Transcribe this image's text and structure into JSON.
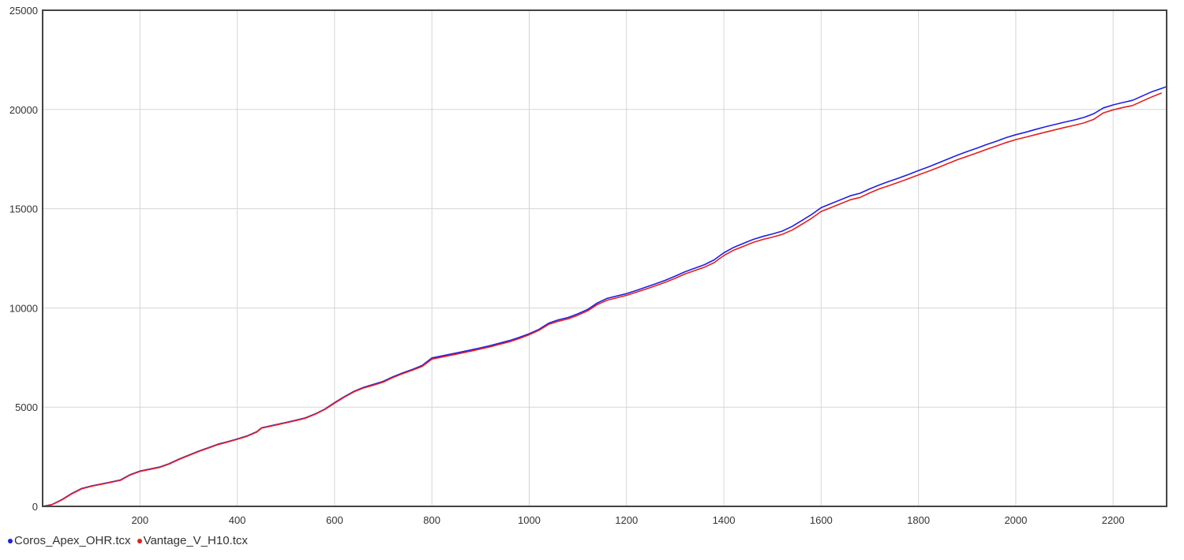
{
  "chart_data": {
    "type": "line",
    "xlim": [
      0,
      2310
    ],
    "ylim": [
      0,
      25000
    ],
    "x_ticks": [
      200,
      400,
      600,
      800,
      1000,
      1200,
      1400,
      1600,
      1800,
      2000,
      2200
    ],
    "y_ticks": [
      0,
      5000,
      10000,
      15000,
      20000,
      25000
    ],
    "grid": true,
    "legend_position": "bottom-left",
    "series": [
      {
        "name": "Coros_Apex_OHR.tcx",
        "color": "#1f1fe6",
        "points": [
          [
            0,
            0
          ],
          [
            20,
            100
          ],
          [
            40,
            350
          ],
          [
            60,
            650
          ],
          [
            80,
            900
          ],
          [
            100,
            1030
          ],
          [
            120,
            1130
          ],
          [
            140,
            1230
          ],
          [
            160,
            1330
          ],
          [
            180,
            1600
          ],
          [
            200,
            1780
          ],
          [
            220,
            1880
          ],
          [
            240,
            1980
          ],
          [
            260,
            2150
          ],
          [
            280,
            2380
          ],
          [
            300,
            2580
          ],
          [
            320,
            2780
          ],
          [
            340,
            2950
          ],
          [
            360,
            3130
          ],
          [
            380,
            3260
          ],
          [
            400,
            3400
          ],
          [
            420,
            3550
          ],
          [
            440,
            3760
          ],
          [
            450,
            3960
          ],
          [
            480,
            4120
          ],
          [
            500,
            4230
          ],
          [
            520,
            4340
          ],
          [
            540,
            4460
          ],
          [
            560,
            4660
          ],
          [
            580,
            4900
          ],
          [
            600,
            5230
          ],
          [
            620,
            5530
          ],
          [
            640,
            5800
          ],
          [
            660,
            6000
          ],
          [
            680,
            6150
          ],
          [
            700,
            6300
          ],
          [
            720,
            6530
          ],
          [
            740,
            6730
          ],
          [
            760,
            6900
          ],
          [
            780,
            7100
          ],
          [
            800,
            7480
          ],
          [
            820,
            7580
          ],
          [
            840,
            7680
          ],
          [
            860,
            7780
          ],
          [
            880,
            7880
          ],
          [
            900,
            7990
          ],
          [
            920,
            8100
          ],
          [
            940,
            8230
          ],
          [
            960,
            8360
          ],
          [
            980,
            8520
          ],
          [
            1000,
            8700
          ],
          [
            1020,
            8920
          ],
          [
            1040,
            9230
          ],
          [
            1060,
            9400
          ],
          [
            1080,
            9520
          ],
          [
            1100,
            9700
          ],
          [
            1120,
            9920
          ],
          [
            1140,
            10250
          ],
          [
            1160,
            10480
          ],
          [
            1180,
            10600
          ],
          [
            1200,
            10720
          ],
          [
            1220,
            10880
          ],
          [
            1240,
            11050
          ],
          [
            1260,
            11220
          ],
          [
            1280,
            11400
          ],
          [
            1300,
            11600
          ],
          [
            1320,
            11820
          ],
          [
            1340,
            12000
          ],
          [
            1360,
            12180
          ],
          [
            1380,
            12420
          ],
          [
            1400,
            12780
          ],
          [
            1420,
            13050
          ],
          [
            1440,
            13250
          ],
          [
            1460,
            13450
          ],
          [
            1480,
            13600
          ],
          [
            1500,
            13730
          ],
          [
            1520,
            13870
          ],
          [
            1540,
            14100
          ],
          [
            1560,
            14400
          ],
          [
            1580,
            14700
          ],
          [
            1600,
            15050
          ],
          [
            1620,
            15250
          ],
          [
            1640,
            15450
          ],
          [
            1660,
            15650
          ],
          [
            1680,
            15780
          ],
          [
            1700,
            16000
          ],
          [
            1720,
            16200
          ],
          [
            1740,
            16380
          ],
          [
            1760,
            16550
          ],
          [
            1780,
            16730
          ],
          [
            1800,
            16920
          ],
          [
            1820,
            17100
          ],
          [
            1840,
            17300
          ],
          [
            1860,
            17500
          ],
          [
            1880,
            17700
          ],
          [
            1900,
            17880
          ],
          [
            1920,
            18050
          ],
          [
            1940,
            18230
          ],
          [
            1960,
            18400
          ],
          [
            1980,
            18580
          ],
          [
            2000,
            18730
          ],
          [
            2020,
            18850
          ],
          [
            2040,
            18990
          ],
          [
            2060,
            19120
          ],
          [
            2080,
            19240
          ],
          [
            2100,
            19360
          ],
          [
            2120,
            19470
          ],
          [
            2140,
            19600
          ],
          [
            2160,
            19780
          ],
          [
            2180,
            20080
          ],
          [
            2200,
            20230
          ],
          [
            2220,
            20350
          ],
          [
            2240,
            20460
          ],
          [
            2260,
            20680
          ],
          [
            2280,
            20900
          ],
          [
            2310,
            21150
          ]
        ]
      },
      {
        "name": "Vantage_V_H10.tcx",
        "color": "#e61f1f",
        "points": [
          [
            0,
            0
          ],
          [
            20,
            90
          ],
          [
            40,
            330
          ],
          [
            60,
            630
          ],
          [
            80,
            880
          ],
          [
            100,
            1010
          ],
          [
            120,
            1110
          ],
          [
            140,
            1210
          ],
          [
            160,
            1310
          ],
          [
            180,
            1580
          ],
          [
            200,
            1760
          ],
          [
            220,
            1860
          ],
          [
            240,
            1960
          ],
          [
            260,
            2130
          ],
          [
            280,
            2360
          ],
          [
            300,
            2560
          ],
          [
            320,
            2760
          ],
          [
            340,
            2930
          ],
          [
            360,
            3110
          ],
          [
            380,
            3240
          ],
          [
            400,
            3380
          ],
          [
            420,
            3530
          ],
          [
            440,
            3740
          ],
          [
            450,
            3940
          ],
          [
            480,
            4100
          ],
          [
            500,
            4210
          ],
          [
            520,
            4320
          ],
          [
            540,
            4440
          ],
          [
            560,
            4640
          ],
          [
            580,
            4880
          ],
          [
            600,
            5200
          ],
          [
            620,
            5500
          ],
          [
            640,
            5770
          ],
          [
            660,
            5970
          ],
          [
            680,
            6110
          ],
          [
            700,
            6260
          ],
          [
            720,
            6490
          ],
          [
            740,
            6690
          ],
          [
            760,
            6860
          ],
          [
            780,
            7050
          ],
          [
            800,
            7420
          ],
          [
            820,
            7520
          ],
          [
            840,
            7620
          ],
          [
            860,
            7720
          ],
          [
            880,
            7820
          ],
          [
            900,
            7930
          ],
          [
            920,
            8040
          ],
          [
            940,
            8170
          ],
          [
            960,
            8300
          ],
          [
            980,
            8460
          ],
          [
            1000,
            8650
          ],
          [
            1020,
            8870
          ],
          [
            1040,
            9170
          ],
          [
            1060,
            9330
          ],
          [
            1080,
            9450
          ],
          [
            1100,
            9630
          ],
          [
            1120,
            9850
          ],
          [
            1140,
            10170
          ],
          [
            1160,
            10390
          ],
          [
            1180,
            10510
          ],
          [
            1200,
            10630
          ],
          [
            1220,
            10790
          ],
          [
            1240,
            10950
          ],
          [
            1260,
            11120
          ],
          [
            1280,
            11300
          ],
          [
            1300,
            11490
          ],
          [
            1320,
            11710
          ],
          [
            1340,
            11880
          ],
          [
            1360,
            12050
          ],
          [
            1380,
            12280
          ],
          [
            1400,
            12640
          ],
          [
            1420,
            12910
          ],
          [
            1440,
            13100
          ],
          [
            1460,
            13300
          ],
          [
            1480,
            13450
          ],
          [
            1500,
            13570
          ],
          [
            1520,
            13710
          ],
          [
            1540,
            13920
          ],
          [
            1560,
            14210
          ],
          [
            1580,
            14510
          ],
          [
            1600,
            14860
          ],
          [
            1620,
            15050
          ],
          [
            1640,
            15250
          ],
          [
            1660,
            15450
          ],
          [
            1680,
            15570
          ],
          [
            1700,
            15800
          ],
          [
            1720,
            16000
          ],
          [
            1740,
            16170
          ],
          [
            1760,
            16340
          ],
          [
            1780,
            16520
          ],
          [
            1800,
            16700
          ],
          [
            1820,
            16880
          ],
          [
            1840,
            17070
          ],
          [
            1860,
            17270
          ],
          [
            1880,
            17470
          ],
          [
            1900,
            17640
          ],
          [
            1920,
            17810
          ],
          [
            1940,
            17990
          ],
          [
            1960,
            18160
          ],
          [
            1980,
            18330
          ],
          [
            2000,
            18480
          ],
          [
            2020,
            18600
          ],
          [
            2040,
            18730
          ],
          [
            2060,
            18850
          ],
          [
            2080,
            18970
          ],
          [
            2100,
            19090
          ],
          [
            2120,
            19200
          ],
          [
            2140,
            19320
          ],
          [
            2160,
            19500
          ],
          [
            2180,
            19830
          ],
          [
            2200,
            19980
          ],
          [
            2220,
            20100
          ],
          [
            2240,
            20200
          ],
          [
            2260,
            20420
          ],
          [
            2280,
            20640
          ],
          [
            2300,
            20830
          ]
        ]
      }
    ]
  },
  "legend": {
    "items": [
      {
        "label": "Coros_Apex_OHR.tcx",
        "color": "#1f1fe6"
      },
      {
        "label": "Vantage_V_H10.tcx",
        "color": "#e61f1f"
      }
    ]
  }
}
